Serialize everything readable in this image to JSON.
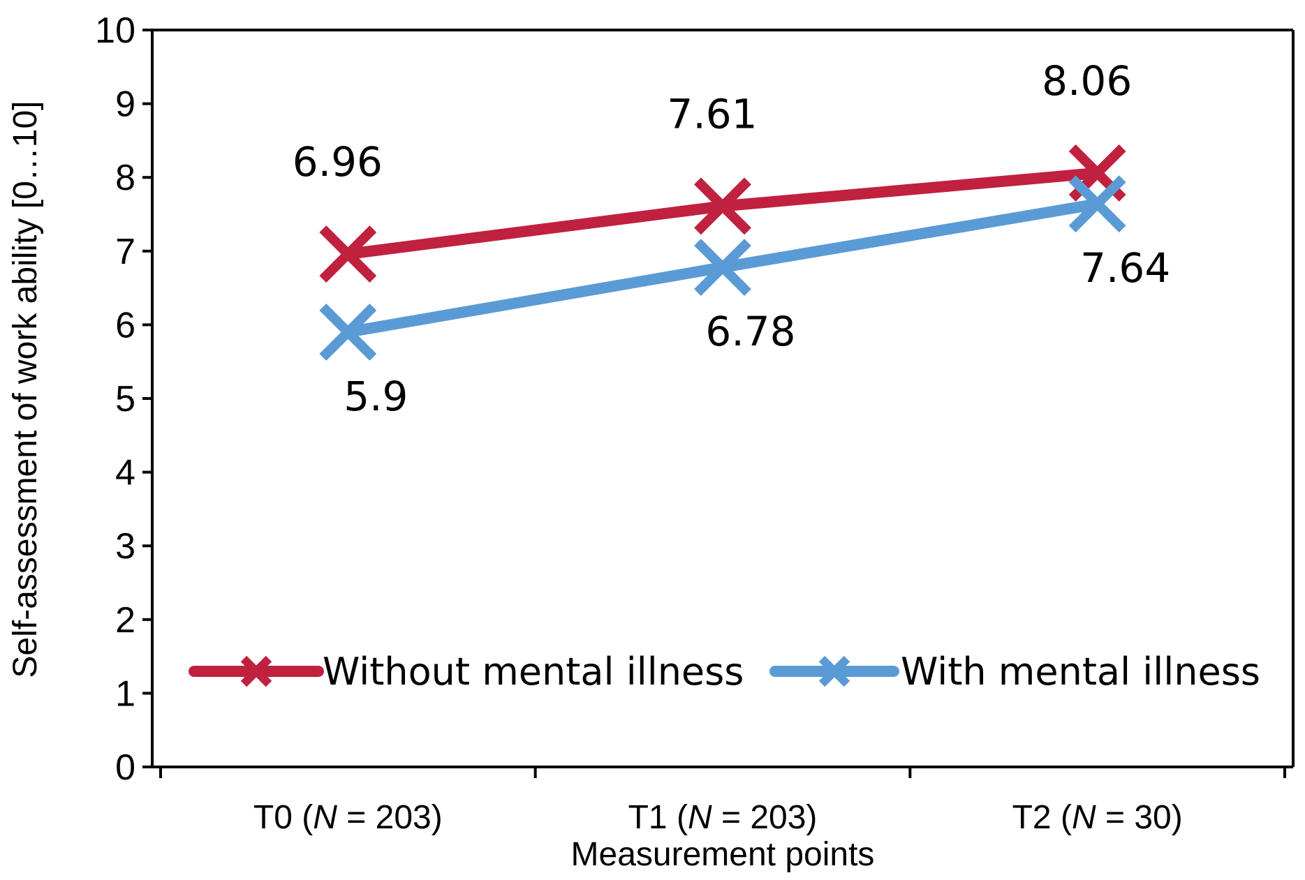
{
  "chart_data": {
    "type": "line",
    "title": "",
    "xlabel": "Measurement points",
    "ylabel": "Self-assessment of work ability [0…10]",
    "ylim": [
      0,
      10
    ],
    "yticks": [
      0,
      1,
      2,
      3,
      4,
      5,
      6,
      7,
      8,
      9,
      10
    ],
    "categories": [
      {
        "prefix": "T0 (",
        "n_symbol": "N",
        "suffix": " = 203)"
      },
      {
        "prefix": "T1 (",
        "n_symbol": "N",
        "suffix": " = 203)"
      },
      {
        "prefix": "T2 (",
        "n_symbol": "N",
        "suffix": " = 30)"
      }
    ],
    "series": [
      {
        "name": "Without mental illness",
        "color": "#c0213f",
        "marker": "x",
        "values": [
          6.96,
          7.61,
          8.06
        ],
        "labels": [
          "6.96",
          "7.61",
          "8.06"
        ],
        "label_position": "above"
      },
      {
        "name": "With mental illness",
        "color": "#5b9bd5",
        "marker": "x",
        "values": [
          5.9,
          6.78,
          7.64
        ],
        "labels": [
          "5.9",
          "6.78",
          "7.64"
        ],
        "label_position": "below"
      }
    ],
    "legend": "bottom-inside",
    "grid": false
  }
}
